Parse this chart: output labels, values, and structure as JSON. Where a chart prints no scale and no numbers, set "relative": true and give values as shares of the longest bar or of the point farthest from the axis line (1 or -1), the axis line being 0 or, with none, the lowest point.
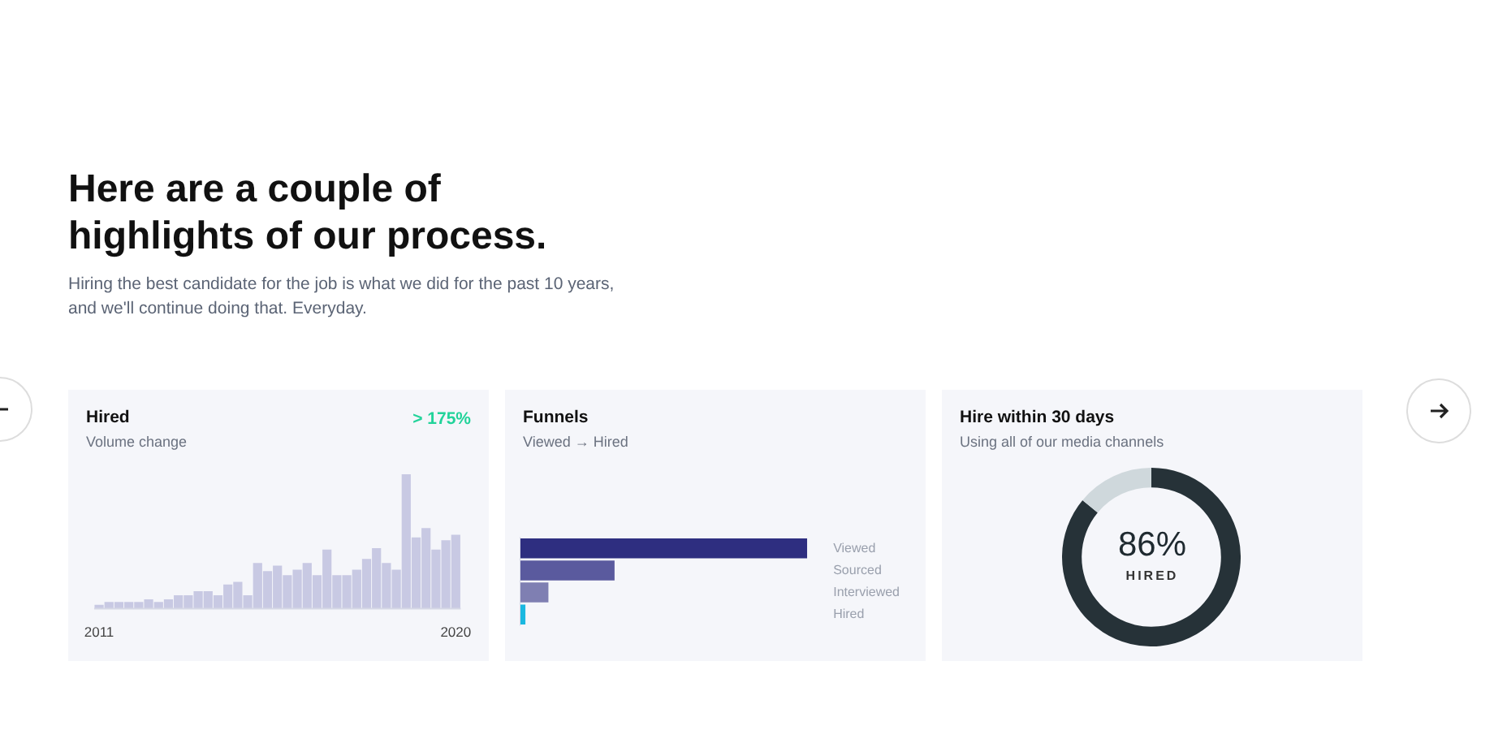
{
  "chart_data": [
    {
      "type": "other",
      "title": "Here are a couple of highlights of our process.",
      "subtitle": "Hiring the best candidate for the job is what we did for the past 10 years, and we'll continue doing that. Everyday."
    },
    {
      "type": "bar",
      "title": "Hired",
      "subtitle": "Volume change",
      "annotations": [
        "> 175%"
      ],
      "relative": true,
      "tick_labels": "x",
      "color": "#c8c9e3",
      "categories": [
        "2011",
        null,
        null,
        null,
        null,
        null,
        null,
        null,
        null,
        null,
        null,
        null,
        null,
        null,
        null,
        null,
        null,
        null,
        null,
        null,
        null,
        null,
        null,
        null,
        null,
        null,
        null,
        null,
        null,
        null,
        null,
        null,
        null,
        null,
        null,
        null,
        "2020"
      ],
      "values": [
        0.03,
        0.05,
        0.05,
        0.05,
        0.05,
        0.07,
        0.05,
        0.07,
        0.1,
        0.1,
        0.13,
        0.13,
        0.1,
        0.18,
        0.2,
        0.1,
        0.34,
        0.28,
        0.32,
        0.25,
        0.29,
        0.34,
        0.25,
        0.44,
        0.25,
        0.25,
        0.29,
        0.37,
        0.45,
        0.34,
        0.29,
        1,
        0.53,
        0.6,
        0.44,
        0.51,
        0.55
      ]
    },
    {
      "type": "bar",
      "orientation": "horizontal",
      "title": "Funnels",
      "subtitle": "Viewed → Hired",
      "relative": true,
      "tick_labels": "y",
      "categories": [
        "Viewed",
        "Sourced",
        "Interviewed",
        "Hired"
      ],
      "values": [
        1,
        0.33,
        0.1,
        0.02
      ],
      "colors": [
        "#2e2e80",
        "#5a5a9e",
        "#7f7fb2",
        "#1ab8e0"
      ]
    },
    {
      "type": "donut",
      "title": "Hire within 30 days",
      "subtitle": "Using all of our media channels",
      "categories": [
        "HIRED",
        null
      ],
      "values": [
        86,
        14
      ],
      "value_labels": [
        "86%",
        null
      ],
      "colors": [
        "#263238",
        "#cfd8dc"
      ]
    }
  ]
}
